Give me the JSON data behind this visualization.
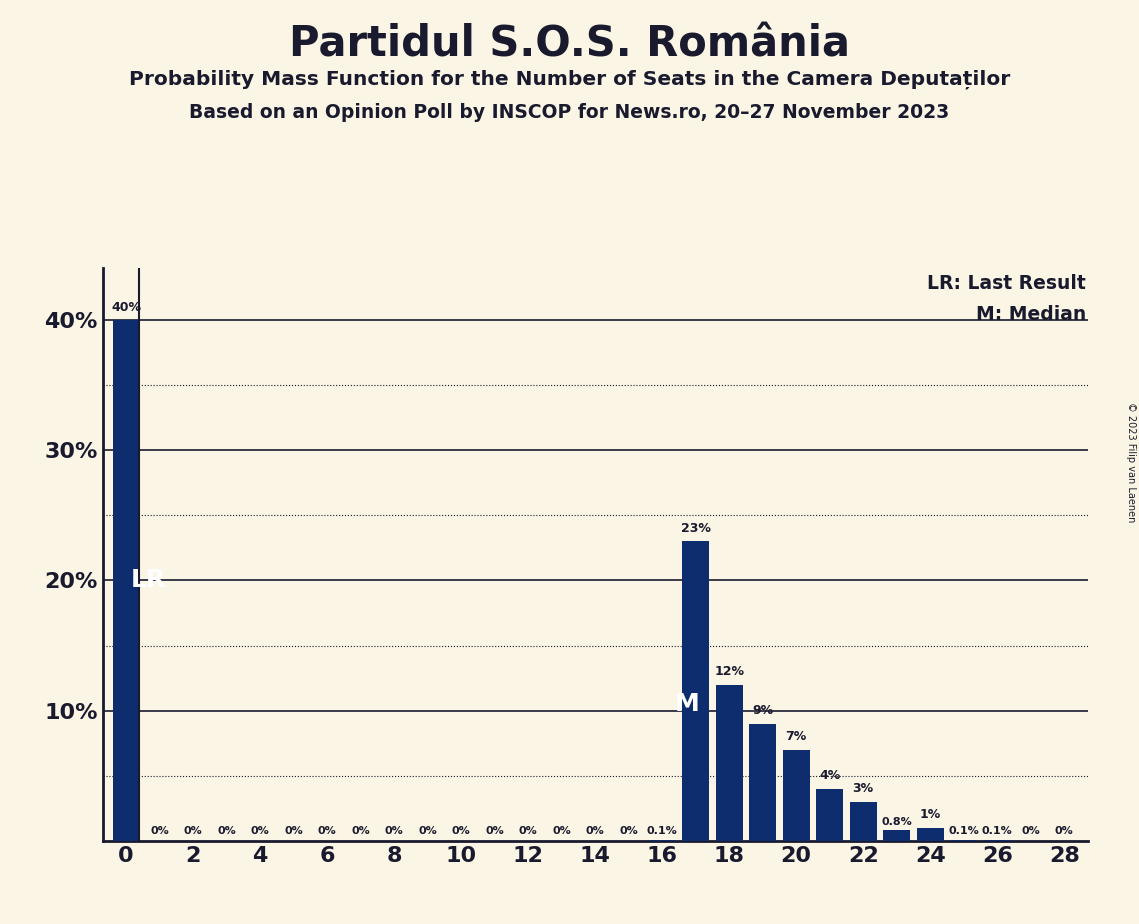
{
  "title": "Partidul S.O.S. România",
  "subtitle1": "Probability Mass Function for the Number of Seats in the Camera Deputaților",
  "subtitle2": "Based on an Opinion Poll by INSCOP for News.ro, 20–27 November 2023",
  "copyright": "© 2023 Filip van Laenen",
  "legend_lr": "LR: Last Result",
  "legend_m": "M: Median",
  "lr_label": "LR",
  "m_label": "M",
  "lr_value": 0,
  "median_value": 17,
  "seats": [
    0,
    1,
    2,
    3,
    4,
    5,
    6,
    7,
    8,
    9,
    10,
    11,
    12,
    13,
    14,
    15,
    16,
    17,
    18,
    19,
    20,
    21,
    22,
    23,
    24,
    25,
    26,
    27,
    28
  ],
  "probabilities": [
    40.0,
    0.0,
    0.0,
    0.0,
    0.0,
    0.0,
    0.0,
    0.0,
    0.0,
    0.0,
    0.0,
    0.0,
    0.0,
    0.0,
    0.0,
    0.0,
    0.1,
    23.0,
    12.0,
    9.0,
    7.0,
    4.0,
    3.0,
    0.8,
    1.0,
    0.1,
    0.1,
    0.0,
    0.0
  ],
  "bar_color": "#0d2d6e",
  "bg_color": "#faf5e4",
  "text_color": "#1a1a2e",
  "grid_major_color": "#1a1a2e",
  "grid_minor_color": "#1a1a2e",
  "ylim": [
    0,
    44
  ],
  "yticks": [
    10,
    20,
    30,
    40
  ],
  "xlim": [
    -0.7,
    28.7
  ],
  "xticks": [
    0,
    2,
    4,
    6,
    8,
    10,
    12,
    14,
    16,
    18,
    20,
    22,
    24,
    26,
    28
  ]
}
